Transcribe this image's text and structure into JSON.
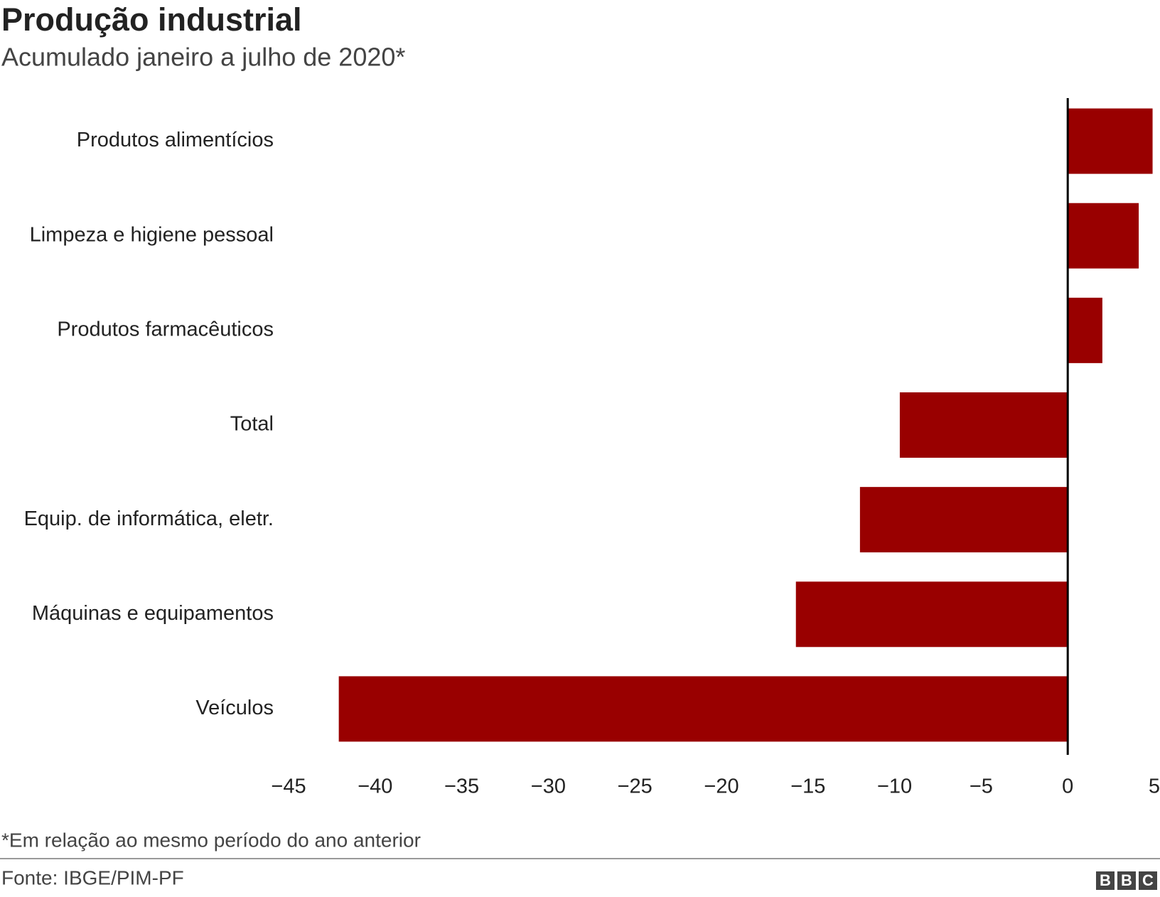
{
  "chart_data": {
    "type": "hbar",
    "title": "Produção industrial",
    "subtitle": "Acumulado janeiro a julho de 2020*",
    "categories": [
      "Produtos alimentícios",
      "Limpeza e higiene pessoal",
      "Produtos farmacêuticos",
      "Total",
      "Equip. de informática, eletr.",
      "Máquinas e equipamentos",
      "Veículos"
    ],
    "values": [
      4.9,
      4.1,
      2.0,
      -9.7,
      -12.0,
      -15.7,
      -42.1
    ],
    "color": "#990000",
    "xlim": [
      -45,
      5
    ],
    "xticks": [
      {
        "value": -45,
        "label": "−45"
      },
      {
        "value": -40,
        "label": "−40"
      },
      {
        "value": -35,
        "label": "−35"
      },
      {
        "value": -30,
        "label": "−30"
      },
      {
        "value": -25,
        "label": "−25"
      },
      {
        "value": -20,
        "label": "−20"
      },
      {
        "value": -15,
        "label": "−15"
      },
      {
        "value": -10,
        "label": "−10"
      },
      {
        "value": -5,
        "label": "−5"
      },
      0,
      5
    ],
    "note": "*Em relação ao mesmo período do ano anterior",
    "source": "Fonte: IBGE/PIM-PF",
    "logo": [
      "B",
      "B",
      "C"
    ]
  }
}
